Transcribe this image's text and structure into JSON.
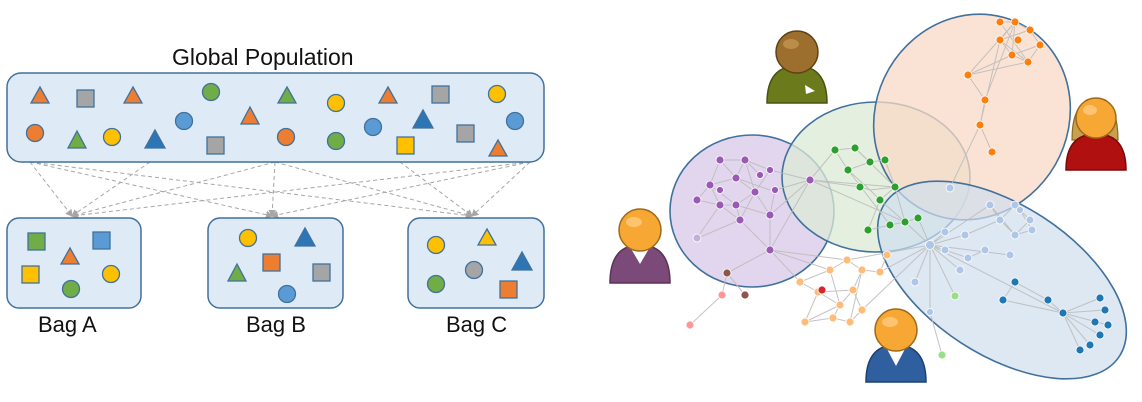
{
  "left_diagram": {
    "title": "Global Population",
    "bags": [
      {
        "id": "bag-a",
        "label": "Bag A"
      },
      {
        "id": "bag-b",
        "label": "Bag B"
      },
      {
        "id": "bag-c",
        "label": "Bag C"
      }
    ],
    "shape_kinds": [
      "triangle",
      "square",
      "circle"
    ],
    "palette": {
      "orange": "#ED7D31",
      "gray": "#A5A5A5",
      "green": "#70AD47",
      "yellow": "#FFC000",
      "blue": "#5B9BD5",
      "dark_blue": "#2E75B6",
      "box_fill": "#DEEBF7",
      "box_stroke": "#41719C",
      "arrow": "#A6A6A6"
    }
  },
  "right_diagram": {
    "groups": [
      {
        "name": "purple-group",
        "color": "#D9CCE8"
      },
      {
        "name": "green-group",
        "color": "#DCE9D5"
      },
      {
        "name": "orange-group",
        "color": "#F8D9C5"
      },
      {
        "name": "blue-group",
        "color": "#CFDEEE"
      }
    ],
    "users": [
      {
        "name": "user-purple",
        "color": "#7B4A78"
      },
      {
        "name": "user-olive",
        "color": "#6B7A1A"
      },
      {
        "name": "user-red",
        "color": "#B01010"
      },
      {
        "name": "user-blue",
        "color": "#2F5F9E"
      }
    ],
    "node_colors": {
      "purple": "#9B59B6",
      "green": "#2CA02C",
      "orange": "#FF7F0E",
      "light_blue": "#AEC7E8",
      "dark_blue": "#1F77B4",
      "light_orange": "#FFBB78",
      "light_green": "#98DF8A",
      "pink": "#FF9896",
      "brown": "#8C564B",
      "red": "#D62728",
      "lavender": "#C5B0D5"
    }
  }
}
